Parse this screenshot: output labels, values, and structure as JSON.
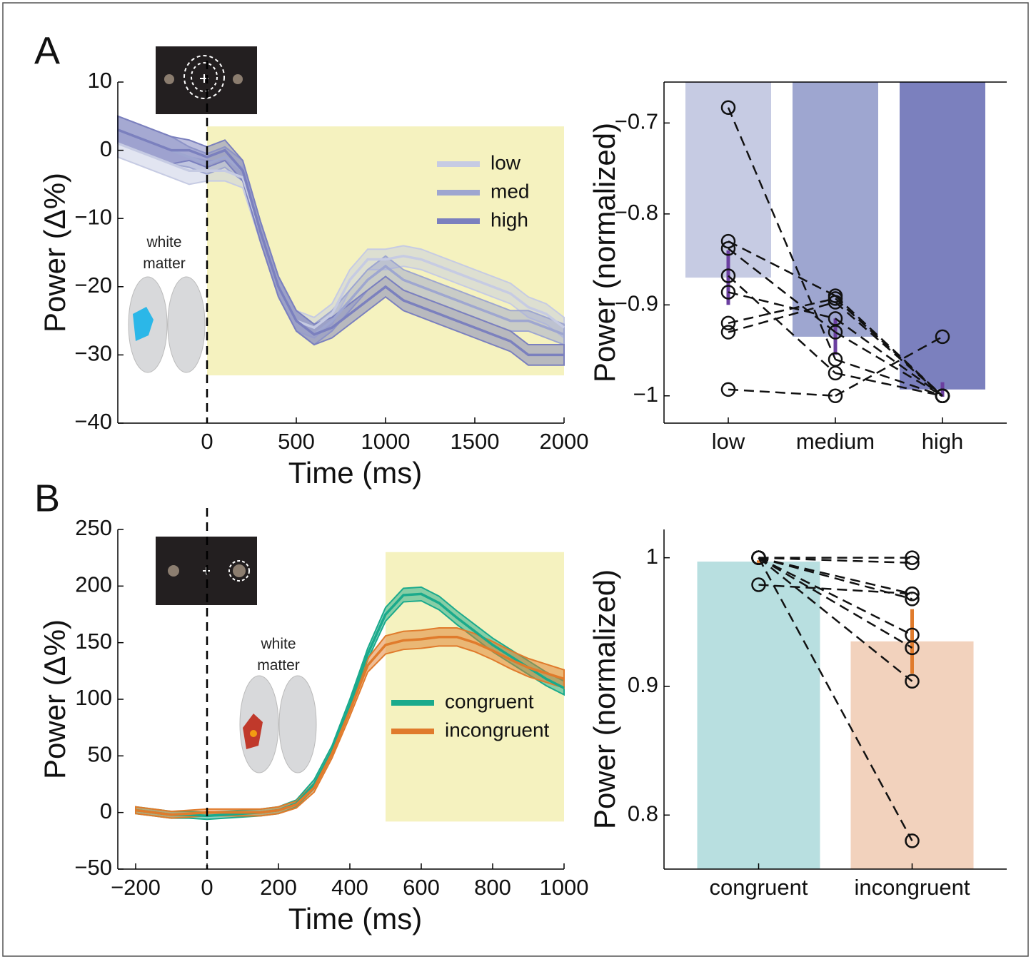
{
  "chart_data": [
    {
      "type": "line",
      "panel_label": "A",
      "annotation": "white matter",
      "x_label": "Time (ms)",
      "y_label": "Power (Δ%)",
      "xlim": [
        -500,
        2000
      ],
      "ylim": [
        -40,
        10
      ],
      "xticks": [
        0,
        500,
        1000,
        1500,
        2000
      ],
      "yticks": [
        {
          "value": -40,
          "label": "−40"
        },
        {
          "value": -30,
          "label": "−30"
        },
        {
          "value": -20,
          "label": "−20"
        },
        {
          "value": -10,
          "label": "−10"
        },
        0,
        10
      ],
      "vline": 0,
      "highlight": {
        "xlim": [
          0,
          2000
        ],
        "ylim": [
          -33,
          3.5
        ],
        "color": "#f5f2bf"
      },
      "legend": "upper right",
      "x": [
        -500,
        -400,
        -300,
        -200,
        -100,
        0,
        100,
        200,
        300,
        400,
        500,
        600,
        700,
        800,
        900,
        1000,
        1100,
        1200,
        1300,
        1400,
        1500,
        1600,
        1700,
        1800,
        1900,
        2000
      ],
      "series": [
        {
          "name": "low",
          "color": "#c6cbe3",
          "values": [
            1,
            0,
            -1,
            -2,
            -3,
            -3,
            -3,
            -4,
            -12,
            -20,
            -25,
            -26,
            -24,
            -19,
            -16,
            -16,
            -15.5,
            -16,
            -17,
            -18,
            -19,
            -20,
            -21,
            -23,
            -24,
            -26
          ],
          "errors": [
            2,
            2,
            2,
            2,
            2,
            1.5,
            1.5,
            1.5,
            1.5,
            1.5,
            1.5,
            1.5,
            1.5,
            1.5,
            1.5,
            1.5,
            1.5,
            1.5,
            1.5,
            1.5,
            1.5,
            1.5,
            1.5,
            1.5,
            1.5,
            1.5
          ]
        },
        {
          "name": "med",
          "color": "#9ea6d0",
          "values": [
            3,
            2,
            1,
            0,
            -1,
            -2,
            -1,
            -3,
            -12,
            -20,
            -25,
            -27,
            -25,
            -22,
            -19,
            -17,
            -19,
            -20,
            -21,
            -22,
            -23,
            -24,
            -25,
            -25,
            -26,
            -27
          ],
          "errors": [
            2,
            2,
            2,
            2,
            1.5,
            1.5,
            1.5,
            1.5,
            1.5,
            1.5,
            1.5,
            1.5,
            1.5,
            1.5,
            1.5,
            1.5,
            1.5,
            1.5,
            1.5,
            1.5,
            1.5,
            1.5,
            1.5,
            1.5,
            1.5,
            1.5
          ]
        },
        {
          "name": "high",
          "color": "#7b80be",
          "values": [
            3,
            2,
            1,
            0,
            0,
            -1,
            0,
            -3,
            -12,
            -20,
            -25,
            -27,
            -26,
            -24,
            -22,
            -20,
            -22,
            -23,
            -24,
            -25,
            -26,
            -27,
            -28,
            -30,
            -30,
            -30
          ],
          "errors": [
            2,
            2,
            2,
            2,
            1.5,
            1.5,
            1.5,
            1.5,
            1.5,
            1.5,
            1.5,
            1.5,
            1.5,
            1.5,
            1.5,
            1.5,
            1.5,
            1.5,
            1.5,
            1.5,
            1.5,
            1.5,
            1.5,
            1.5,
            1.5,
            1.5
          ]
        }
      ]
    },
    {
      "type": "bar",
      "y_label": "Power (normalized)",
      "categories": [
        "low",
        "medium",
        "high"
      ],
      "values": [
        -0.87,
        -0.935,
        -0.993
      ],
      "errors": [
        0.03,
        0.02,
        0.008
      ],
      "colors": [
        "#c6cbe3",
        "#9ea6d0",
        "#7b80be"
      ],
      "error_color": "#6b3fa0",
      "ylim": [
        -1.03,
        -0.655
      ],
      "yticks": [
        {
          "value": -1,
          "label": "−1"
        },
        {
          "value": -0.9,
          "label": "−0.9"
        },
        {
          "value": -0.8,
          "label": "−0.8"
        },
        {
          "value": -0.7,
          "label": "−0.7"
        }
      ],
      "subjects": [
        [
          -0.683,
          -0.96,
          -1
        ],
        [
          -0.83,
          -0.89,
          -1
        ],
        [
          -0.838,
          -0.93,
          -1
        ],
        [
          -0.868,
          -0.975,
          -1
        ],
        [
          -0.886,
          -0.915,
          -1
        ],
        [
          -0.92,
          -0.893,
          -1
        ],
        [
          -0.93,
          -0.897,
          -1
        ],
        [
          -0.993,
          -1,
          -0.935
        ]
      ]
    },
    {
      "type": "line",
      "panel_label": "B",
      "annotation": "white matter",
      "x_label": "Time (ms)",
      "y_label": "Power (Δ%)",
      "xlim": [
        -250,
        1000
      ],
      "ylim": [
        -50,
        250
      ],
      "xticks": [
        {
          "value": -200,
          "label": "−200"
        },
        0,
        200,
        400,
        600,
        800,
        1000
      ],
      "yticks": [
        {
          "value": -50,
          "label": "−50"
        },
        0,
        50,
        100,
        150,
        200,
        250
      ],
      "vline": 0,
      "highlight": {
        "xlim": [
          500,
          1000
        ],
        "ylim": [
          -8,
          230
        ],
        "color": "#f5f2bf"
      },
      "legend": "center right",
      "x": [
        -200,
        -150,
        -100,
        -50,
        0,
        50,
        100,
        150,
        200,
        250,
        300,
        350,
        400,
        450,
        500,
        550,
        600,
        650,
        700,
        750,
        800,
        850,
        900,
        950,
        1000
      ],
      "series": [
        {
          "name": "congruent",
          "color": "#1aaa8c",
          "values": [
            2,
            0,
            -2,
            -2,
            -3,
            -2,
            -1,
            0,
            2,
            8,
            25,
            55,
            95,
            140,
            175,
            192,
            193,
            185,
            172,
            160,
            148,
            138,
            128,
            118,
            110
          ],
          "errors": [
            3,
            3,
            3,
            3,
            3,
            3,
            3,
            3,
            3,
            3,
            4,
            4,
            5,
            5,
            6,
            6,
            6,
            6,
            6,
            6,
            6,
            6,
            6,
            6,
            6
          ]
        },
        {
          "name": "incongruent",
          "color": "#e07b2c",
          "values": [
            2,
            0,
            -2,
            -1,
            0,
            0,
            0,
            0,
            2,
            7,
            22,
            52,
            90,
            130,
            148,
            152,
            153,
            155,
            155,
            150,
            143,
            135,
            128,
            123,
            118
          ],
          "errors": [
            3,
            3,
            3,
            3,
            3,
            3,
            3,
            3,
            3,
            3,
            4,
            4,
            5,
            6,
            8,
            8,
            8,
            8,
            8,
            8,
            8,
            8,
            8,
            8,
            8
          ]
        }
      ]
    },
    {
      "type": "bar",
      "y_label": "Power (normalized)",
      "categories": [
        "congruent",
        "incongruent"
      ],
      "values": [
        0.997,
        0.935
      ],
      "errors": [
        0.001,
        0.025
      ],
      "colors": [
        "#b8dfe0",
        "#f2d2bd"
      ],
      "error_color": "#e07b2c",
      "ylim": [
        0.758,
        1.022
      ],
      "yticks": [
        0.8,
        0.9,
        1
      ],
      "subjects": [
        [
          1,
          1
        ],
        [
          1,
          0.996
        ],
        [
          1,
          0.972
        ],
        [
          1,
          0.968
        ],
        [
          1,
          0.94
        ],
        [
          1,
          0.93
        ],
        [
          1,
          0.904
        ],
        [
          1,
          0.78
        ],
        [
          0.979,
          0.972
        ]
      ]
    }
  ]
}
